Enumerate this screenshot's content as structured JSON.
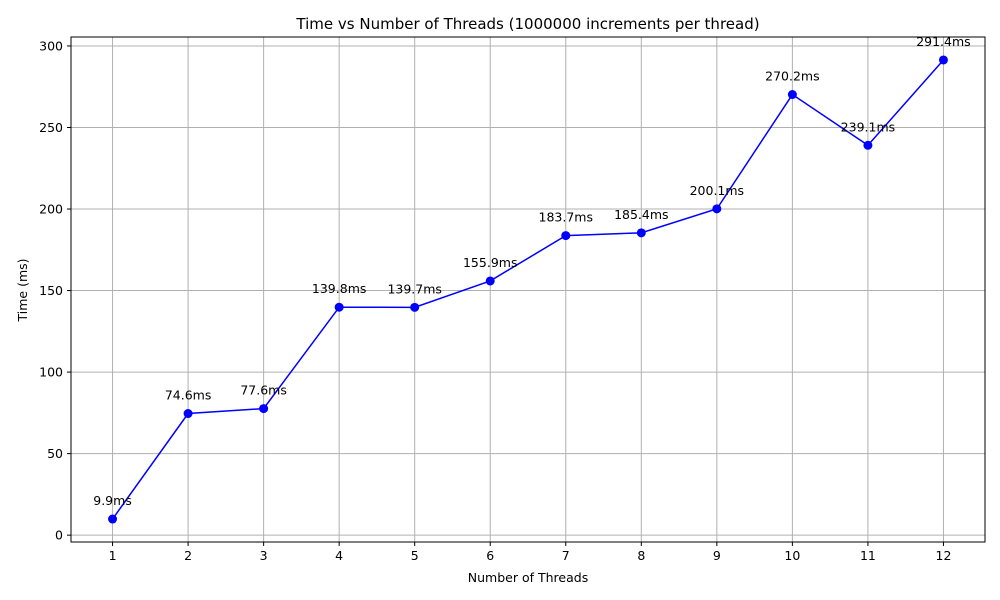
{
  "chart_data": {
    "type": "line",
    "title": "Time vs Number of Threads (1000000 increments per thread)",
    "xlabel": "Number of Threads",
    "ylabel": "Time (ms)",
    "x": [
      1,
      2,
      3,
      4,
      5,
      6,
      7,
      8,
      9,
      10,
      11,
      12
    ],
    "series": [
      {
        "values": [
          9.9,
          74.6,
          77.6,
          139.8,
          139.7,
          155.9,
          183.7,
          185.4,
          200.1,
          270.2,
          239.1,
          291.4
        ],
        "color": "#0000ff"
      }
    ],
    "data_labels": [
      "9.9ms",
      "74.6ms",
      "77.6ms",
      "139.8ms",
      "139.7ms",
      "155.9ms",
      "183.7ms",
      "185.4ms",
      "200.1ms",
      "270.2ms",
      "239.1ms",
      "291.4ms"
    ],
    "x_ticks": [
      "1",
      "2",
      "3",
      "4",
      "5",
      "6",
      "7",
      "8",
      "9",
      "10",
      "11",
      "12"
    ],
    "y_ticks": [
      0,
      50,
      100,
      150,
      200,
      250,
      300
    ],
    "xlim": [
      0.45,
      12.55
    ],
    "ylim": [
      -4.2,
      305.5
    ],
    "grid": true,
    "legend": "none"
  }
}
